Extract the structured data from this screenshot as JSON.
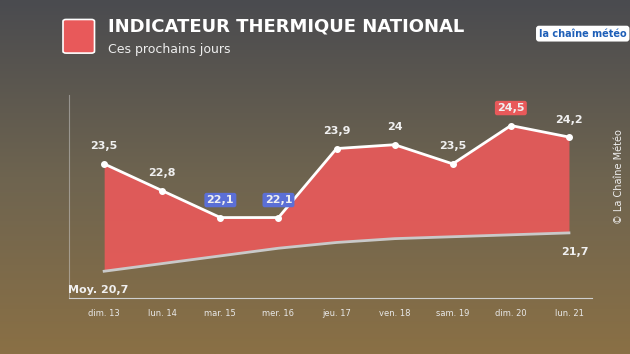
{
  "chart_data": {
    "type": "area",
    "title": "INDICATEUR THERMIQUE NATIONAL",
    "subtitle": "Ces prochains jours",
    "logo": "la chaîne météo",
    "credit": "© La Chaîne Météo",
    "categories": [
      "dim. 13",
      "lun. 14",
      "mar. 15",
      "mer. 16",
      "jeu. 17",
      "ven. 18",
      "sam. 19",
      "dim. 20",
      "lun. 21"
    ],
    "series": [
      {
        "values": [
          23.5,
          22.8,
          22.1,
          22.1,
          23.9,
          24,
          23.5,
          24.5,
          24.2
        ],
        "value_labels": [
          "23,5",
          "22,8",
          "22,1",
          "22,1",
          "23,9",
          "24",
          "23,5",
          "24,5",
          "24,2"
        ],
        "color": "#ffffff",
        "marker": "o"
      },
      {
        "values": [
          20.7,
          20.9,
          21.1,
          21.3,
          21.45,
          21.55,
          21.6,
          21.65,
          21.7
        ],
        "value_labels": [
          "Moy. 20,7",
          null,
          null,
          null,
          null,
          null,
          null,
          null,
          "21,7"
        ],
        "color": "#c9c9c9"
      }
    ],
    "color": "#e85a5a",
    "ylim": [
      20,
      25.3
    ],
    "yticks": [],
    "grid": false,
    "data_labels": true,
    "tick_labels": "x"
  }
}
